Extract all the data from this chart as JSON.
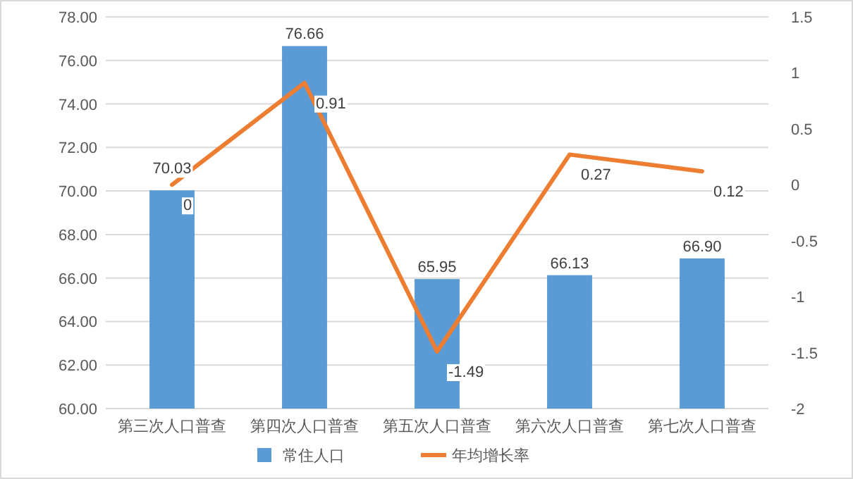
{
  "chart_data": {
    "type": "bar",
    "categories": [
      "第三次人口普查",
      "第四次人口普查",
      "第五次人口普查",
      "第六次人口普查",
      "第七次人口普查"
    ],
    "series": [
      {
        "name": "常住人口",
        "color": "#5b9bd5",
        "values": [
          70.03,
          76.66,
          65.95,
          66.13,
          66.9
        ],
        "value_labels": [
          "70.03",
          "76.66",
          "65.95",
          "66.13",
          "66.90"
        ]
      },
      {
        "name": "年均增长率",
        "type": "line",
        "axis": "y2",
        "color": "#ed7d31",
        "values": [
          0,
          0.91,
          -1.49,
          0.27,
          0.12
        ],
        "value_labels": [
          "0",
          "0.91",
          "-1.49",
          "0.27",
          "0.12"
        ]
      }
    ],
    "ylim": [
      60,
      78
    ],
    "yticks": [
      {
        "value": 60,
        "label": "60.00"
      },
      {
        "value": 62,
        "label": "62.00"
      },
      {
        "value": 64,
        "label": "64.00"
      },
      {
        "value": 66,
        "label": "66.00"
      },
      {
        "value": 68,
        "label": "68.00"
      },
      {
        "value": 70,
        "label": "70.00"
      },
      {
        "value": 72,
        "label": "72.00"
      },
      {
        "value": 74,
        "label": "74.00"
      },
      {
        "value": 76,
        "label": "76.00"
      },
      {
        "value": 78,
        "label": "78.00"
      }
    ],
    "y2lim": [
      -2,
      1.5
    ],
    "y2ticks": [
      -2,
      -1.5,
      -1,
      -0.5,
      0,
      0.5,
      1,
      1.5
    ],
    "grid": "y",
    "legend": "bottom"
  }
}
